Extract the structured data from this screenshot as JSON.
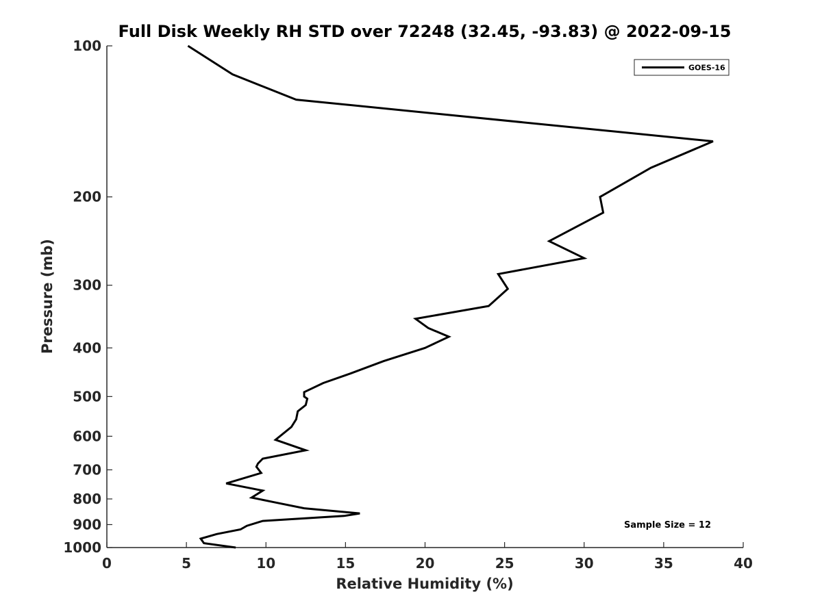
{
  "chart_data": {
    "type": "line",
    "title": "Full Disk Weekly RH STD over 72248 (32.45, -93.83) @ 2022-09-15",
    "xlabel": "Relative Humidity (%)",
    "ylabel": "Pressure (mb)",
    "xlim": [
      0,
      40
    ],
    "ylim": [
      100,
      1000
    ],
    "y_scale": "log",
    "y_reversed": true,
    "x_ticks": [
      0,
      5,
      10,
      15,
      20,
      25,
      30,
      35,
      40
    ],
    "y_ticks": [
      100,
      200,
      300,
      400,
      500,
      600,
      700,
      800,
      900,
      1000
    ],
    "grid": false,
    "legend_position": "top-right",
    "series": [
      {
        "name": "GOES-16",
        "color": "#000000",
        "x": [
          5.1,
          7.9,
          11.9,
          38.1,
          34.2,
          31.0,
          31.2,
          27.8,
          30.0,
          24.6,
          25.2,
          24.0,
          19.4,
          20.2,
          21.5,
          20.0,
          17.4,
          15.3,
          13.6,
          12.4,
          12.4,
          12.6,
          12.5,
          12.0,
          11.9,
          11.6,
          10.6,
          12.5,
          9.8,
          9.5,
          9.4,
          9.7,
          7.5,
          9.8,
          9.1,
          10.5,
          12.4,
          15.9,
          14.9,
          9.8,
          8.8,
          8.4,
          6.9,
          5.9,
          6.1,
          8.1
        ],
        "y": [
          100,
          114,
          128,
          155,
          175,
          200,
          215,
          245,
          265,
          285,
          305,
          330,
          350,
          365,
          380,
          400,
          425,
          450,
          470,
          490,
          500,
          505,
          520,
          535,
          555,
          575,
          610,
          640,
          665,
          680,
          690,
          710,
          745,
          770,
          795,
          812,
          835,
          855,
          865,
          885,
          905,
          920,
          940,
          960,
          980,
          1000
        ]
      }
    ],
    "annotations": [
      "Sample Size = 12"
    ]
  }
}
